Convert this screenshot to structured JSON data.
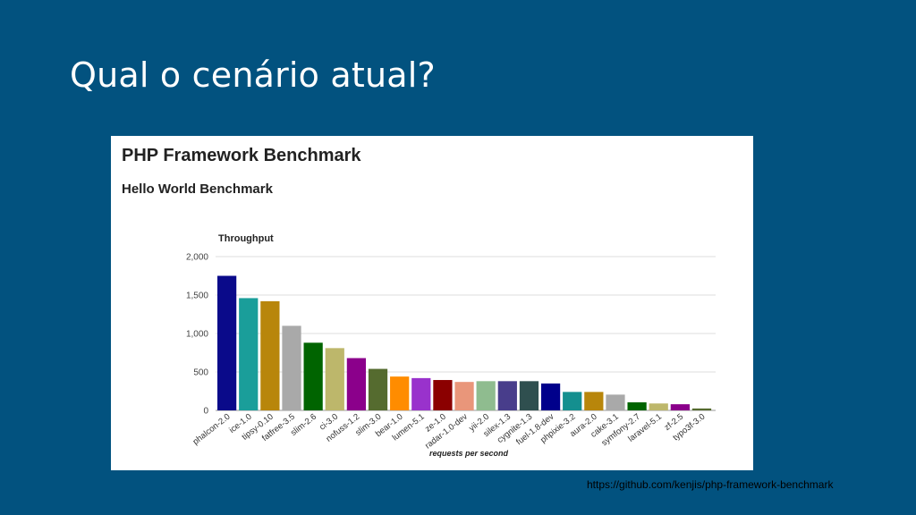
{
  "slide": {
    "title": "Qual o cenário atual?",
    "source_url": "https://github.com/kenjis/php-framework-benchmark"
  },
  "colors": {
    "background": "#02527f",
    "panel": "#ffffff"
  },
  "chart_data": {
    "type": "bar",
    "title": "PHP Framework Benchmark",
    "subtitle": "Hello World Benchmark",
    "plot_title": "Throughput",
    "xlabel": "requests per second",
    "ylabel": "",
    "ylim": [
      0,
      2000
    ],
    "yticks": [
      0,
      500,
      1000,
      1500,
      2000
    ],
    "ytick_labels": [
      "0",
      "500",
      "1,000",
      "1,500",
      "2,000"
    ],
    "grid": true,
    "legend": "none",
    "categories": [
      "phalcon-2.0",
      "ice-1.0",
      "tipsy-0.10",
      "fatfree-3.5",
      "slim-2.6",
      "ci-3.0",
      "nofuss-1.2",
      "slim-3.0",
      "bear-1.0",
      "lumen-5.1",
      "ze-1.0",
      "radar-1.0-dev",
      "yii-2.0",
      "silex-1.3",
      "cygnite-1.3",
      "fuel-1.8-dev",
      "phpixie-3.2",
      "aura-2.0",
      "cake-3.1",
      "symfony-2.7",
      "laravel-5.1",
      "zf-2.5",
      "typo3f-3.0"
    ],
    "values": [
      1750,
      1460,
      1420,
      1100,
      880,
      810,
      680,
      540,
      440,
      420,
      395,
      370,
      380,
      380,
      380,
      350,
      240,
      240,
      205,
      105,
      90,
      80,
      25
    ],
    "colors": [
      "#0a0a8a",
      "#1a9e9a",
      "#b8860b",
      "#a9a9a9",
      "#006400",
      "#bdb76b",
      "#8b008b",
      "#556b2f",
      "#ff8c00",
      "#9932cc",
      "#8b0000",
      "#e9967a",
      "#8fbc8f",
      "#483d8b",
      "#2f4f4f",
      "#00008b",
      "#148f8f",
      "#b8860b",
      "#a9a9a9",
      "#006400",
      "#bdb76b",
      "#8b008b",
      "#556b2f"
    ]
  }
}
